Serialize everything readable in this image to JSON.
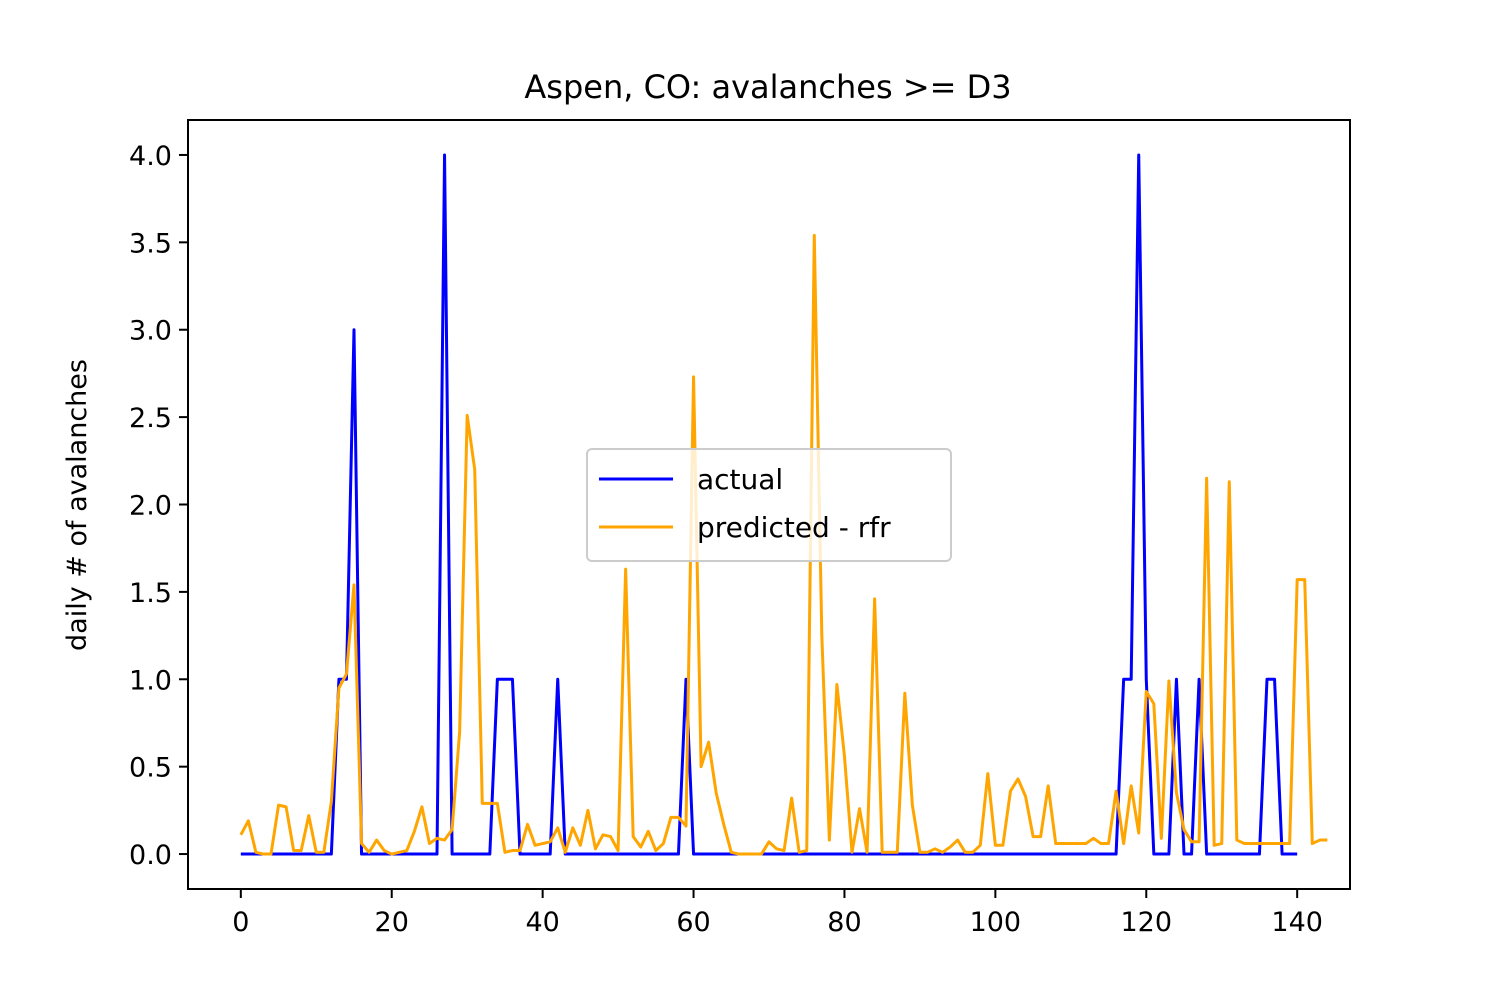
{
  "chart_data": {
    "type": "line",
    "title": "Aspen, CO: avalanches >= D3",
    "xlabel": "",
    "ylabel": "daily # of avalanches",
    "xlim": [
      -7,
      147
    ],
    "ylim": [
      -0.2,
      4.2
    ],
    "x_ticks": [
      0,
      20,
      40,
      60,
      80,
      100,
      120,
      140
    ],
    "y_ticks": [
      0.0,
      0.5,
      1.0,
      1.5,
      2.0,
      2.5,
      3.0,
      3.5,
      4.0
    ],
    "x_tick_labels": [
      "0",
      "20",
      "40",
      "60",
      "80",
      "100",
      "120",
      "140"
    ],
    "y_tick_labels": [
      "0.0",
      "0.5",
      "1.0",
      "1.5",
      "2.0",
      "2.5",
      "3.0",
      "3.5",
      "4.0"
    ],
    "grid": false,
    "legend_position": "center",
    "series": [
      {
        "name": "actual",
        "color": "#0000ff",
        "values": [
          0,
          0,
          0,
          0,
          0,
          0,
          0,
          0,
          0,
          0,
          0,
          0,
          0,
          1,
          1,
          3,
          0,
          0,
          0,
          0,
          0,
          0,
          0,
          0,
          0,
          0,
          0,
          4,
          0,
          0,
          0,
          0,
          0,
          0,
          1,
          1,
          1,
          0,
          0,
          0,
          0,
          0,
          1,
          0,
          0,
          0,
          0,
          0,
          0,
          0,
          0,
          0,
          0,
          0,
          0,
          0,
          0,
          0,
          0,
          1,
          0,
          0,
          0,
          0,
          0,
          0,
          0,
          0,
          0,
          0,
          0,
          0,
          0,
          0,
          0,
          0,
          0,
          0,
          0,
          0,
          0,
          0,
          0,
          0,
          0,
          0,
          0,
          0,
          0,
          0,
          0,
          0,
          0,
          0,
          0,
          0,
          0,
          0,
          0,
          0,
          0,
          0,
          0,
          0,
          0,
          0,
          0,
          0,
          0,
          0,
          0,
          0,
          0,
          0,
          0,
          0,
          0,
          1,
          1,
          4,
          1,
          0,
          0,
          0,
          1,
          0,
          0,
          1,
          0,
          0,
          0,
          0,
          0,
          0,
          0,
          0,
          1,
          1,
          0,
          0,
          0
        ]
      },
      {
        "name": "predicted - rfr",
        "color": "#ffa500",
        "values": [
          0.11,
          0.19,
          0.01,
          0.0,
          0.0,
          0.28,
          0.27,
          0.02,
          0.02,
          0.22,
          0.01,
          0.01,
          0.3,
          0.95,
          1.03,
          1.54,
          0.06,
          0.01,
          0.08,
          0.02,
          0.0,
          0.01,
          0.02,
          0.13,
          0.27,
          0.06,
          0.09,
          0.08,
          0.14,
          0.7,
          2.51,
          2.2,
          0.29,
          0.29,
          0.29,
          0.01,
          0.02,
          0.02,
          0.17,
          0.05,
          0.06,
          0.07,
          0.15,
          0.01,
          0.15,
          0.05,
          0.25,
          0.03,
          0.11,
          0.1,
          0.02,
          1.63,
          0.1,
          0.04,
          0.13,
          0.02,
          0.06,
          0.21,
          0.21,
          0.16,
          2.73,
          0.5,
          0.64,
          0.35,
          0.17,
          0.01,
          0.0,
          0.0,
          0.0,
          0.0,
          0.07,
          0.03,
          0.02,
          0.32,
          0.01,
          0.02,
          3.54,
          1.25,
          0.08,
          0.97,
          0.56,
          0.01,
          0.26,
          0.01,
          1.46,
          0.01,
          0.01,
          0.01,
          0.92,
          0.28,
          0.01,
          0.01,
          0.03,
          0.01,
          0.04,
          0.08,
          0.01,
          0.01,
          0.05,
          0.46,
          0.05,
          0.05,
          0.36,
          0.43,
          0.33,
          0.1,
          0.1,
          0.39,
          0.06,
          0.06,
          0.06,
          0.06,
          0.06,
          0.09,
          0.06,
          0.06,
          0.36,
          0.06,
          0.39,
          0.12,
          0.93,
          0.86,
          0.09,
          0.99,
          0.35,
          0.14,
          0.07,
          0.07,
          2.15,
          0.05,
          0.06,
          2.13,
          0.08,
          0.06,
          0.06,
          0.06,
          0.06,
          0.06,
          0.06,
          0.06,
          1.57,
          1.57,
          0.06,
          0.08,
          0.08
        ]
      }
    ]
  }
}
